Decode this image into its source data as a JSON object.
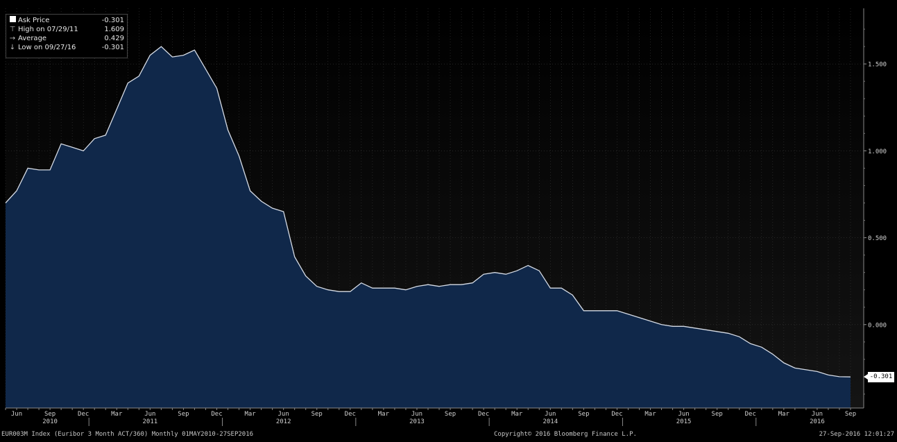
{
  "legend": {
    "rows": [
      {
        "label": "Ask Price",
        "value": "-0.301",
        "symbol": "swatch"
      },
      {
        "label": "High on 07/29/11",
        "value": "1.609",
        "symbol": "high"
      },
      {
        "label": "Average",
        "value": "0.429",
        "symbol": "avg"
      },
      {
        "label": "Low on 09/27/16",
        "value": "-0.301",
        "symbol": "low"
      }
    ]
  },
  "last_value": "-0.301",
  "footer": {
    "left": "EUR003M Index (Euribor 3 Month ACT/360)  Monthly 01MAY2010-27SEP2016",
    "center": "Copyright© 2016 Bloomberg Finance L.P.",
    "right": "27-Sep-2016 12:01:27"
  },
  "colors": {
    "area_fill": "#10284a",
    "area_line": "#d6dce6",
    "plot_bg_top": "#000000",
    "plot_bg_bottom": "#141414",
    "grid": "#3a3a3a"
  },
  "chart_data": {
    "type": "area",
    "series": [
      {
        "name": "Ask Price",
        "x": [
          "2010-05",
          "2010-06",
          "2010-07",
          "2010-08",
          "2010-09",
          "2010-10",
          "2010-11",
          "2010-12",
          "2011-01",
          "2011-02",
          "2011-03",
          "2011-04",
          "2011-05",
          "2011-06",
          "2011-07",
          "2011-08",
          "2011-09",
          "2011-10",
          "2011-11",
          "2011-12",
          "2012-01",
          "2012-02",
          "2012-03",
          "2012-04",
          "2012-05",
          "2012-06",
          "2012-07",
          "2012-08",
          "2012-09",
          "2012-10",
          "2012-11",
          "2012-12",
          "2013-01",
          "2013-02",
          "2013-03",
          "2013-04",
          "2013-05",
          "2013-06",
          "2013-07",
          "2013-08",
          "2013-09",
          "2013-10",
          "2013-11",
          "2013-12",
          "2014-01",
          "2014-02",
          "2014-03",
          "2014-04",
          "2014-05",
          "2014-06",
          "2014-07",
          "2014-08",
          "2014-09",
          "2014-10",
          "2014-11",
          "2014-12",
          "2015-01",
          "2015-02",
          "2015-03",
          "2015-04",
          "2015-05",
          "2015-06",
          "2015-07",
          "2015-08",
          "2015-09",
          "2015-10",
          "2015-11",
          "2015-12",
          "2016-01",
          "2016-02",
          "2016-03",
          "2016-04",
          "2016-05",
          "2016-06",
          "2016-07",
          "2016-08",
          "2016-09"
        ],
        "values": [
          0.7,
          0.77,
          0.9,
          0.89,
          0.89,
          1.04,
          1.02,
          1.0,
          1.07,
          1.09,
          1.24,
          1.39,
          1.43,
          1.55,
          1.6,
          1.54,
          1.55,
          1.58,
          1.47,
          1.36,
          1.12,
          0.97,
          0.77,
          0.71,
          0.67,
          0.65,
          0.39,
          0.28,
          0.22,
          0.2,
          0.19,
          0.19,
          0.24,
          0.21,
          0.21,
          0.21,
          0.2,
          0.22,
          0.23,
          0.22,
          0.23,
          0.23,
          0.24,
          0.29,
          0.3,
          0.29,
          0.31,
          0.34,
          0.31,
          0.21,
          0.21,
          0.17,
          0.08,
          0.08,
          0.08,
          0.08,
          0.06,
          0.04,
          0.02,
          0.0,
          -0.01,
          -0.01,
          -0.02,
          -0.03,
          -0.04,
          -0.05,
          -0.07,
          -0.11,
          -0.13,
          -0.17,
          -0.22,
          -0.25,
          -0.26,
          -0.27,
          -0.29,
          -0.3,
          -0.301
        ]
      }
    ],
    "y_ticks": [
      "1.500",
      "1.000",
      "0.500",
      "0.000"
    ],
    "y_tick_values": [
      1.5,
      1.0,
      0.5,
      0.0
    ],
    "ylim": [
      -0.48,
      1.82
    ],
    "x_month_labels": [
      {
        "date": "2010-06",
        "label": "Jun"
      },
      {
        "date": "2010-09",
        "label": "Sep"
      },
      {
        "date": "2010-12",
        "label": "Dec"
      },
      {
        "date": "2011-03",
        "label": "Mar"
      },
      {
        "date": "2011-06",
        "label": "Jun"
      },
      {
        "date": "2011-09",
        "label": "Sep"
      },
      {
        "date": "2011-12",
        "label": "Dec"
      },
      {
        "date": "2012-03",
        "label": "Mar"
      },
      {
        "date": "2012-06",
        "label": "Jun"
      },
      {
        "date": "2012-09",
        "label": "Sep"
      },
      {
        "date": "2012-12",
        "label": "Dec"
      },
      {
        "date": "2013-03",
        "label": "Mar"
      },
      {
        "date": "2013-06",
        "label": "Jun"
      },
      {
        "date": "2013-09",
        "label": "Sep"
      },
      {
        "date": "2013-12",
        "label": "Dec"
      },
      {
        "date": "2014-03",
        "label": "Mar"
      },
      {
        "date": "2014-06",
        "label": "Jun"
      },
      {
        "date": "2014-09",
        "label": "Sep"
      },
      {
        "date": "2014-12",
        "label": "Dec"
      },
      {
        "date": "2015-03",
        "label": "Mar"
      },
      {
        "date": "2015-06",
        "label": "Jun"
      },
      {
        "date": "2015-09",
        "label": "Sep"
      },
      {
        "date": "2015-12",
        "label": "Dec"
      },
      {
        "date": "2016-03",
        "label": "Mar"
      },
      {
        "date": "2016-06",
        "label": "Jun"
      },
      {
        "date": "2016-09",
        "label": "Sep"
      }
    ],
    "x_year_labels": [
      {
        "date": "2010-09",
        "label": "2010"
      },
      {
        "date": "2011-06",
        "label": "2011"
      },
      {
        "date": "2012-06",
        "label": "2012"
      },
      {
        "date": "2013-06",
        "label": "2013"
      },
      {
        "date": "2014-06",
        "label": "2014"
      },
      {
        "date": "2015-06",
        "label": "2015"
      },
      {
        "date": "2016-06",
        "label": "2016"
      }
    ],
    "x_year_boundaries": [
      "2011-01",
      "2012-01",
      "2013-01",
      "2014-01",
      "2015-01",
      "2016-01"
    ],
    "grid": true,
    "legend_position": "top-left"
  }
}
